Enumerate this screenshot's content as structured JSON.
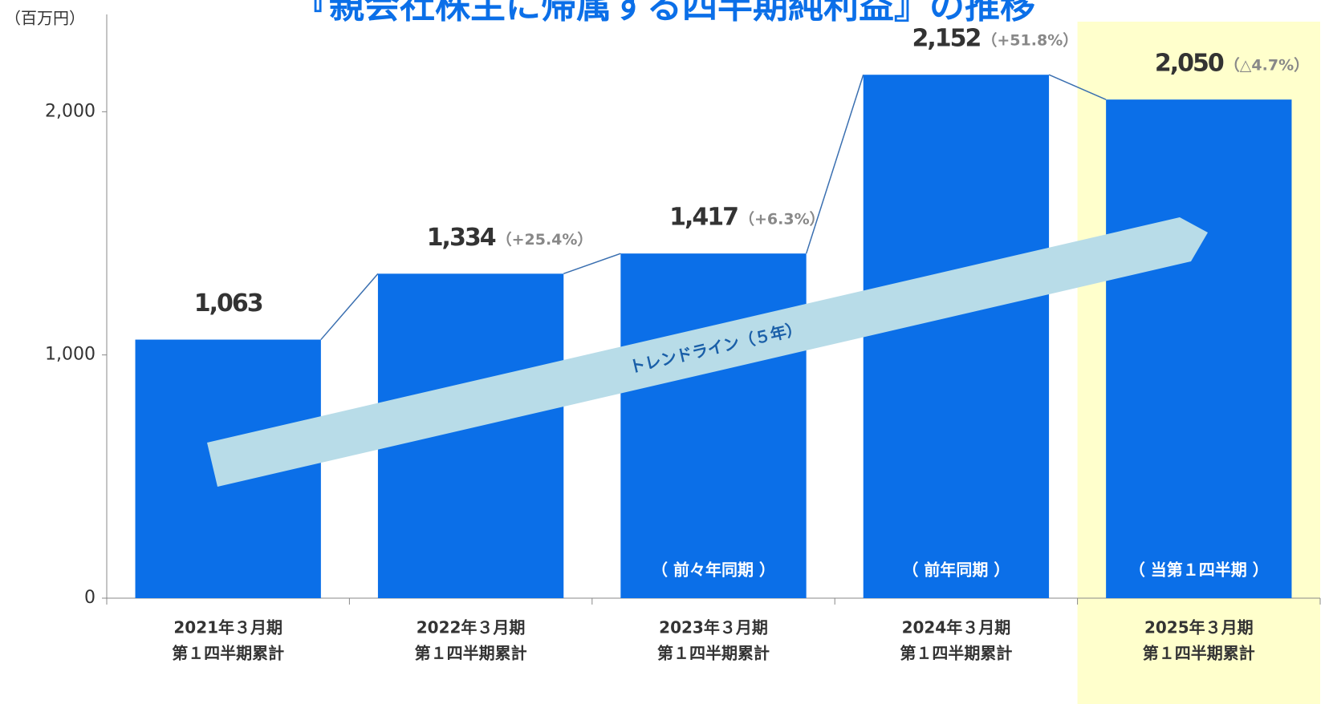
{
  "chart_data": {
    "type": "bar",
    "title": "『親会社株主に帰属する四半期純利益』の推移",
    "y_unit": "（百万円）",
    "categories": [
      [
        "2021年３月期",
        "第１四半期累計"
      ],
      [
        "2022年３月期",
        "第１四半期累計"
      ],
      [
        "2023年３月期",
        "第１四半期累計"
      ],
      [
        "2024年３月期",
        "第１四半期累計"
      ],
      [
        "2025年３月期",
        "第１四半期累計"
      ]
    ],
    "values": [
      1063,
      1334,
      1417,
      2152,
      2050
    ],
    "value_labels": [
      "1,063",
      "1,334",
      "1,417",
      "2,152",
      "2,050"
    ],
    "changes": [
      null,
      "（+25.4%）",
      "（+6.3%）",
      "（+51.8%）",
      "（△4.7%）"
    ],
    "bar_notes": [
      null,
      null,
      "（ 前々年同期 ）",
      "（ 前年同期 ）",
      "（ 当第１四半期 ）"
    ],
    "highlight_index": 4,
    "trend_label": "トレンドライン（５年）",
    "color": "#0b6fe8",
    "ylim": [
      0,
      2400
    ],
    "yticks": [
      0,
      {
        "value": 1000,
        "label": "1,000"
      },
      {
        "value": 2000,
        "label": "2,000"
      }
    ],
    "grid": false
  }
}
